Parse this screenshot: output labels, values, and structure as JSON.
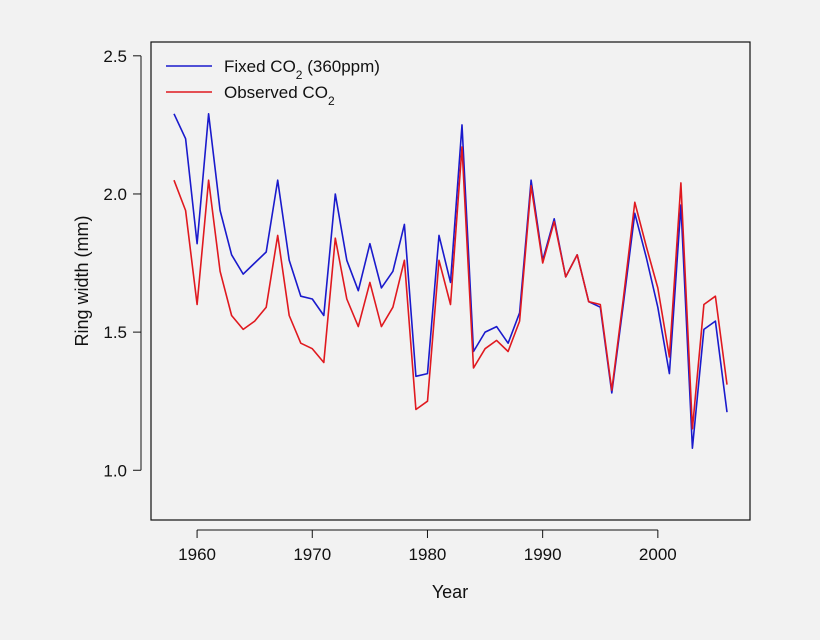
{
  "chart_data": {
    "type": "line",
    "xlabel": "Year",
    "ylabel": "Ring width (mm)",
    "xlim": [
      1956,
      2008
    ],
    "ylim": [
      0.82,
      2.55
    ],
    "xticks": [
      1960,
      1970,
      1980,
      1990,
      2000
    ],
    "yticks": [
      1.0,
      1.5,
      2.0,
      2.5
    ],
    "ytick_labels": [
      "1.0",
      "1.5",
      "2.0",
      "2.5"
    ],
    "legend_position": "top-left",
    "grid": false,
    "x": [
      1958,
      1959,
      1960,
      1961,
      1962,
      1963,
      1964,
      1965,
      1966,
      1967,
      1968,
      1969,
      1970,
      1971,
      1972,
      1973,
      1974,
      1975,
      1976,
      1977,
      1978,
      1979,
      1980,
      1981,
      1982,
      1983,
      1984,
      1985,
      1986,
      1987,
      1988,
      1989,
      1990,
      1991,
      1992,
      1993,
      1994,
      1995,
      1996,
      1997,
      1998,
      1999,
      2000,
      2001,
      2002,
      2003,
      2004,
      2005,
      2006
    ],
    "series": [
      {
        "name_main": "Fixed CO",
        "name_sub": "2",
        "name_tail": " (360ppm)",
        "color": "#1a1acc",
        "values": [
          2.29,
          2.2,
          1.82,
          2.29,
          1.94,
          1.78,
          1.71,
          1.75,
          1.79,
          2.05,
          1.76,
          1.63,
          1.62,
          1.56,
          2.0,
          1.76,
          1.65,
          1.82,
          1.66,
          1.72,
          1.89,
          1.34,
          1.35,
          1.85,
          1.68,
          2.25,
          1.43,
          1.5,
          1.52,
          1.46,
          1.57,
          2.05,
          1.76,
          1.91,
          1.7,
          1.78,
          1.61,
          1.59,
          1.28,
          1.6,
          1.93,
          1.77,
          1.59,
          1.35,
          1.96,
          1.08,
          1.51,
          1.54,
          1.21
        ]
      },
      {
        "name_main": "Observed CO",
        "name_sub": "2",
        "name_tail": "",
        "color": "#e0191f",
        "values": [
          2.05,
          1.94,
          1.6,
          2.05,
          1.72,
          1.56,
          1.51,
          1.54,
          1.59,
          1.85,
          1.56,
          1.46,
          1.44,
          1.39,
          1.84,
          1.62,
          1.52,
          1.68,
          1.52,
          1.59,
          1.76,
          1.22,
          1.25,
          1.76,
          1.6,
          2.17,
          1.37,
          1.44,
          1.47,
          1.43,
          1.54,
          2.03,
          1.75,
          1.9,
          1.7,
          1.78,
          1.61,
          1.6,
          1.29,
          1.62,
          1.97,
          1.81,
          1.66,
          1.41,
          2.04,
          1.15,
          1.6,
          1.63,
          1.31
        ]
      }
    ]
  }
}
